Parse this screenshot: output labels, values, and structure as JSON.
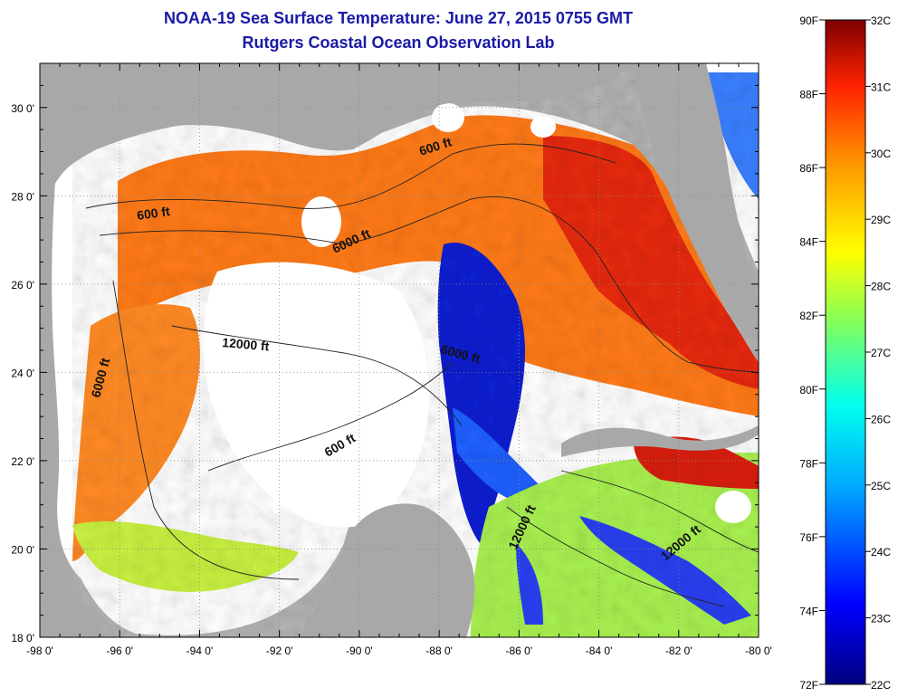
{
  "title": {
    "line1": "NOAA-19 Sea Surface Temperature:  June 27, 2015 0755 GMT",
    "line2": "Rutgers Coastal Ocean Observation Lab"
  },
  "map": {
    "lon_range": [
      -98,
      -80
    ],
    "lat_range": [
      18,
      31
    ],
    "lon_ticks": [
      "-98 0'",
      "-96 0'",
      "-94 0'",
      "-92 0'",
      "-90 0'",
      "-88 0'",
      "-86 0'",
      "-84 0'",
      "-82 0'",
      "-80 0'"
    ],
    "lat_ticks": [
      "18 0'",
      "20 0'",
      "22 0'",
      "24 0'",
      "26 0'",
      "28 0'",
      "30 0'"
    ],
    "contour_labels": [
      "600 ft",
      "600 ft",
      "6000 ft",
      "12000 ft",
      "6000 ft",
      "6000 ft",
      "600 ft",
      "12000 ft",
      "12000 ft"
    ],
    "land_color": "#a8a8a8",
    "cloud_color": "#ffffff"
  },
  "colorbar": {
    "fahrenheit_labels": [
      "90F",
      "88F",
      "86F",
      "84F",
      "82F",
      "80F",
      "78F",
      "76F",
      "74F",
      "72F"
    ],
    "celsius_labels": [
      "32C",
      "31C",
      "30C",
      "29C",
      "28C",
      "27C",
      "26C",
      "25C",
      "24C",
      "23C",
      "22C"
    ],
    "range_f": [
      72,
      90
    ],
    "range_c": [
      22,
      32
    ]
  },
  "colors": {
    "title": "#1a1aa6",
    "hot": "#7f0000",
    "warm": "#ff3300",
    "mid": "#ffff00",
    "cool": "#00ffff",
    "cold": "#00007f"
  }
}
